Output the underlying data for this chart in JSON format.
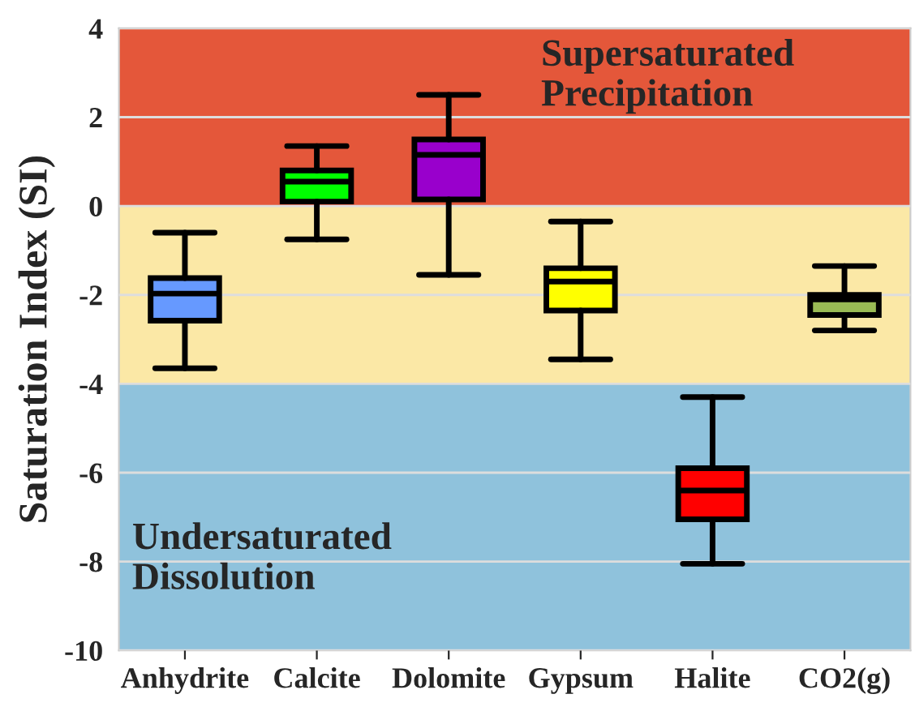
{
  "chart_data": {
    "type": "box",
    "ylabel": "Saturation Index (SI)",
    "categories": [
      "Anhydrite",
      "Calcite",
      "Dolomite",
      "Gypsum",
      "Halite",
      "CO2(g)"
    ],
    "colors": [
      "#6699ff",
      "#00ff00",
      "#9900cc",
      "#ffff00",
      "#ff0000",
      "#99bb55"
    ],
    "boxes": [
      {
        "low": -3.65,
        "q1": -2.58,
        "median": -1.97,
        "q3": -1.62,
        "high": -0.6
      },
      {
        "low": -0.75,
        "q1": 0.1,
        "median": 0.55,
        "q3": 0.8,
        "high": 1.35
      },
      {
        "low": -1.55,
        "q1": 0.15,
        "median": 1.15,
        "q3": 1.5,
        "high": 2.5
      },
      {
        "low": -3.45,
        "q1": -2.35,
        "median": -1.7,
        "q3": -1.4,
        "high": -0.35
      },
      {
        "low": -8.05,
        "q1": -7.05,
        "median": -6.4,
        "q3": -5.9,
        "high": -4.3
      },
      {
        "low": -2.8,
        "q1": -2.45,
        "median": -2.1,
        "q3": -2.0,
        "high": -1.35
      }
    ],
    "ylim": [
      -10,
      4
    ],
    "yticks": [
      -10,
      -8,
      -6,
      -4,
      -2,
      0,
      2,
      4
    ],
    "grid": "y",
    "bands": [
      {
        "axis": "y",
        "from": 0,
        "to": 4,
        "label": "Supersaturated\nPrecipitation",
        "color": "#e4573a"
      },
      {
        "axis": "y",
        "from": -4,
        "to": 0,
        "label": null,
        "color": "#fbe8a6"
      },
      {
        "axis": "y",
        "from": -10,
        "to": -4,
        "label": "Undersaturated\nDissolution",
        "color": "#8fc2dc"
      }
    ]
  }
}
